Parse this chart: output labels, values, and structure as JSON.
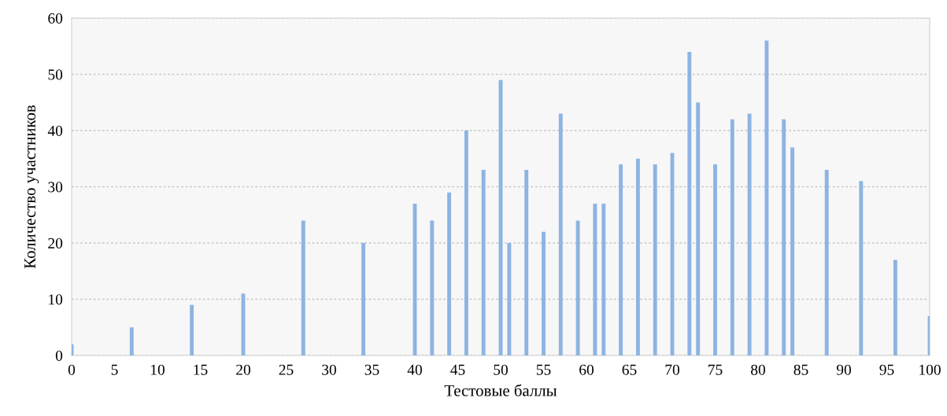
{
  "chart_data": {
    "type": "bar",
    "xlabel": "Тестовые баллы",
    "ylabel": "Количество участников",
    "x": [
      0,
      7,
      14,
      20,
      27,
      34,
      40,
      42,
      44,
      46,
      48,
      50,
      51,
      53,
      55,
      57,
      59,
      61,
      62,
      64,
      66,
      68,
      70,
      72,
      73,
      75,
      77,
      79,
      81,
      83,
      84,
      88,
      92,
      96,
      100
    ],
    "values": [
      2,
      5,
      9,
      11,
      24,
      20,
      27,
      24,
      29,
      40,
      33,
      49,
      20,
      33,
      22,
      43,
      24,
      27,
      27,
      34,
      35,
      34,
      36,
      54,
      45,
      34,
      42,
      43,
      56,
      42,
      37,
      33,
      31,
      17,
      7
    ],
    "color": "#8db4e2",
    "xlim": [
      0,
      100
    ],
    "xticks": [
      0,
      5,
      10,
      15,
      20,
      25,
      30,
      35,
      40,
      45,
      50,
      55,
      60,
      65,
      70,
      75,
      80,
      85,
      90,
      95,
      100
    ],
    "ylim": [
      0,
      60
    ],
    "yticks": [
      0,
      10,
      20,
      30,
      40,
      50,
      60
    ],
    "grid": "y"
  }
}
